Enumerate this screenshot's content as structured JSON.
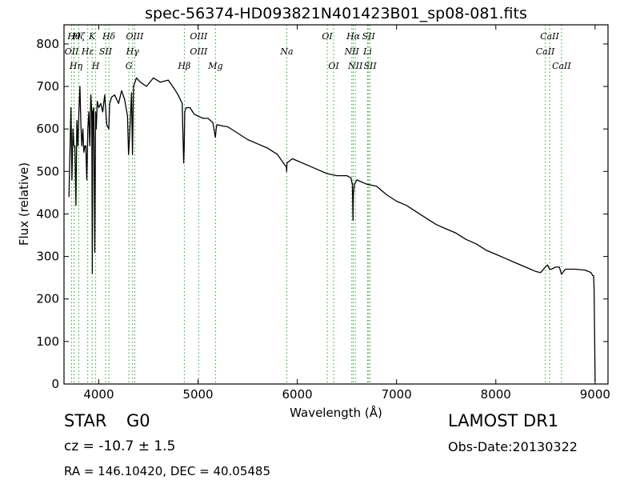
{
  "chart_data": {
    "type": "line",
    "title": "spec-56374-HD093821N401423B01_sp08-081.fits",
    "xlabel": "Wavelength (Å)",
    "ylabel": "Flux (relative)",
    "xlim": [
      3650,
      9130
    ],
    "ylim": [
      0,
      845
    ],
    "xticks": [
      "4000",
      "5000",
      "6000",
      "7000",
      "8000",
      "9000"
    ],
    "xtick_values": [
      4000,
      5000,
      6000,
      7000,
      8000,
      9000
    ],
    "yticks": [
      "0",
      "100",
      "200",
      "300",
      "400",
      "500",
      "600",
      "700",
      "800"
    ],
    "ytick_values": [
      0,
      100,
      200,
      300,
      400,
      500,
      600,
      700,
      800
    ],
    "grid": false,
    "line_color": "#000000",
    "marker_color": "#2ca02c",
    "series": [
      {
        "x": [
          3700,
          3710,
          3720,
          3730,
          3740,
          3750,
          3760,
          3770,
          3780,
          3790,
          3800,
          3810,
          3820,
          3830,
          3840,
          3850,
          3860,
          3870,
          3880,
          3890,
          3900,
          3910,
          3920,
          3930,
          3935,
          3940,
          3950,
          3960,
          3968,
          3975,
          3985,
          4000,
          4020,
          4040,
          4060,
          4080,
          4101,
          4110,
          4130,
          4160,
          4200,
          4230,
          4260,
          4290,
          4300,
          4310,
          4330,
          4340,
          4350,
          4380,
          4420,
          4480,
          4550,
          4620,
          4700,
          4760,
          4800,
          4840,
          4856,
          4861,
          4866,
          4880,
          4920,
          4960,
          5000,
          5050,
          5100,
          5150,
          5175,
          5183,
          5190,
          5250,
          5300,
          5400,
          5500,
          5600,
          5700,
          5800,
          5890,
          5893,
          5896,
          5950,
          6000,
          6100,
          6200,
          6300,
          6400,
          6500,
          6540,
          6555,
          6562,
          6565,
          6575,
          6600,
          6700,
          6800,
          6900,
          7000,
          7100,
          7200,
          7300,
          7400,
          7500,
          7600,
          7700,
          7800,
          7900,
          8000,
          8100,
          8200,
          8300,
          8400,
          8450,
          8498,
          8520,
          8542,
          8560,
          8600,
          8640,
          8662,
          8700,
          8800,
          8900,
          8960,
          8975,
          8985,
          8990,
          9000
        ],
        "y": [
          440,
          545,
          650,
          480,
          600,
          560,
          560,
          420,
          620,
          560,
          640,
          700,
          610,
          560,
          600,
          545,
          560,
          560,
          480,
          600,
          640,
          560,
          680,
          640,
          260,
          640,
          650,
          310,
          640,
          600,
          665,
          650,
          660,
          640,
          680,
          610,
          600,
          660,
          675,
          680,
          660,
          690,
          670,
          630,
          540,
          580,
          685,
          540,
          700,
          720,
          710,
          700,
          720,
          710,
          715,
          695,
          680,
          660,
          520,
          560,
          640,
          650,
          650,
          635,
          630,
          625,
          625,
          615,
          580,
          600,
          610,
          607,
          605,
          590,
          575,
          565,
          555,
          540,
          510,
          500,
          520,
          530,
          525,
          515,
          505,
          495,
          490,
          490,
          485,
          470,
          385,
          445,
          470,
          480,
          470,
          465,
          445,
          430,
          420,
          405,
          390,
          375,
          365,
          355,
          340,
          330,
          315,
          305,
          295,
          285,
          275,
          265,
          262,
          275,
          280,
          270,
          270,
          275,
          275,
          258,
          270,
          270,
          268,
          262,
          255,
          255,
          225,
          5
        ]
      }
    ],
    "lines": [
      {
        "name": "OII",
        "x": 3727,
        "rows": [
          2
        ],
        "tick": true
      },
      {
        "name": "Hθ",
        "x": 3751,
        "rows": [
          1
        ],
        "tick": true
      },
      {
        "name": "Hη",
        "x": 3771,
        "rows": [
          3
        ],
        "tick": false
      },
      {
        "name": "Hζ",
        "x": 3799,
        "rows": [
          1
        ],
        "tick": true
      },
      {
        "name": "Hε",
        "x": 3889,
        "rows": [
          2
        ],
        "tick": true
      },
      {
        "name": "K",
        "x": 3934,
        "rows": [
          1
        ],
        "tick": true
      },
      {
        "name": "SII",
        "x": 4069,
        "rows": [
          2
        ],
        "tick": true
      },
      {
        "name": "H",
        "x": 3969,
        "rows": [
          3
        ],
        "tick": true
      },
      {
        "name": "Hδ",
        "x": 4102,
        "rows": [
          1
        ],
        "tick": true
      },
      {
        "name": "OIII",
        "x": 4363,
        "rows": [
          1
        ],
        "tick": true
      },
      {
        "name": "Hγ",
        "x": 4341,
        "rows": [
          2
        ],
        "tick": true
      },
      {
        "name": "G",
        "x": 4304,
        "rows": [
          3
        ],
        "tick": true
      },
      {
        "name": "Hβ",
        "x": 4862,
        "rows": [
          3
        ],
        "tick": true
      },
      {
        "name": "OIII",
        "x": 5007,
        "rows": [
          1,
          2
        ],
        "tick": true
      },
      {
        "name": "Mg",
        "x": 5176,
        "rows": [
          3
        ],
        "tick": true
      },
      {
        "name": "Na",
        "x": 5894,
        "rows": [
          2
        ],
        "tick": true
      },
      {
        "name": "OI",
        "x": 6302,
        "rows": [
          1
        ],
        "tick": true
      },
      {
        "name": "OI",
        "x": 6366,
        "rows": [
          3
        ],
        "tick": true
      },
      {
        "name": "Hα",
        "x": 6564,
        "rows": [
          1
        ],
        "tick": true
      },
      {
        "name": "NII",
        "x": 6549,
        "rows": [
          2
        ],
        "tick": true
      },
      {
        "name": "NII",
        "x": 6585,
        "rows": [
          3
        ],
        "tick": true
      },
      {
        "name": "SII",
        "x": 6718,
        "rows": [
          1
        ],
        "tick": true
      },
      {
        "name": "Li",
        "x": 6708,
        "rows": [
          2
        ],
        "tick": true
      },
      {
        "name": "SII",
        "x": 6733,
        "rows": [
          3
        ],
        "tick": true
      },
      {
        "name": "CaII",
        "x": 8542,
        "rows": [
          1
        ],
        "tick": true
      },
      {
        "name": "CaII",
        "x": 8498,
        "rows": [
          2
        ],
        "tick": true
      },
      {
        "name": "CaII",
        "x": 8662,
        "rows": [
          3
        ],
        "tick": true
      }
    ]
  },
  "info": {
    "class": "STAR",
    "subclass": "G0",
    "cz": "cz = -10.7  ± 1.5",
    "ra_dec": "RA = 146.10420, DEC = 40.05485",
    "survey": "LAMOST DR1",
    "obs_date": "Obs-Date:20130322"
  }
}
